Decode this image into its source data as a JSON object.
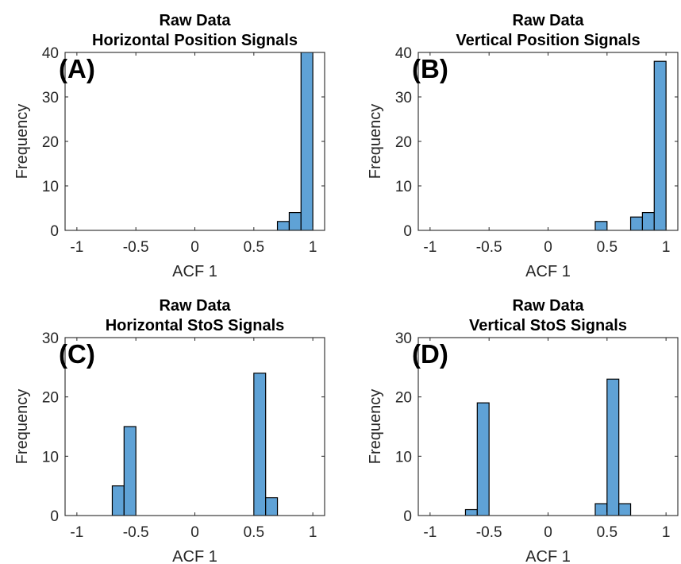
{
  "chart_data": [
    {
      "type": "bar",
      "panel_label": "(A)",
      "title": [
        "Raw Data",
        "Horizontal Position Signals"
      ],
      "xlabel": "ACF 1",
      "ylabel": "Frequency",
      "xlim": [
        -1.1,
        1.1
      ],
      "ylim": [
        0,
        40
      ],
      "xticks": [
        -1,
        -0.5,
        0,
        0.5,
        1
      ],
      "xtick_labels": [
        "-1",
        "-0.5",
        "0",
        "0.5",
        "1"
      ],
      "yticks": [
        0,
        10,
        20,
        30,
        40
      ],
      "ytick_labels": [
        "0",
        "10",
        "20",
        "30",
        "40"
      ],
      "bar_color": "#5fa2d6",
      "bins": [
        {
          "x0": 0.7,
          "x1": 0.8,
          "value": 2
        },
        {
          "x0": 0.8,
          "x1": 0.9,
          "value": 4
        },
        {
          "x0": 0.9,
          "x1": 1.0,
          "value": 41
        }
      ]
    },
    {
      "type": "bar",
      "panel_label": "(B)",
      "title": [
        "Raw Data",
        "Vertical Position Signals"
      ],
      "xlabel": "ACF 1",
      "ylabel": "Frequency",
      "xlim": [
        -1.1,
        1.1
      ],
      "ylim": [
        0,
        40
      ],
      "xticks": [
        -1,
        -0.5,
        0,
        0.5,
        1
      ],
      "xtick_labels": [
        "-1",
        "-0.5",
        "0",
        "0.5",
        "1"
      ],
      "yticks": [
        0,
        10,
        20,
        30,
        40
      ],
      "ytick_labels": [
        "0",
        "10",
        "20",
        "30",
        "40"
      ],
      "bar_color": "#5fa2d6",
      "bins": [
        {
          "x0": 0.4,
          "x1": 0.5,
          "value": 2
        },
        {
          "x0": 0.7,
          "x1": 0.8,
          "value": 3
        },
        {
          "x0": 0.8,
          "x1": 0.9,
          "value": 4
        },
        {
          "x0": 0.9,
          "x1": 1.0,
          "value": 38
        }
      ]
    },
    {
      "type": "bar",
      "panel_label": "(C)",
      "title": [
        "Raw Data",
        "Horizontal StoS Signals"
      ],
      "xlabel": "ACF 1",
      "ylabel": "Frequency",
      "xlim": [
        -1.1,
        1.1
      ],
      "ylim": [
        0,
        30
      ],
      "xticks": [
        -1,
        -0.5,
        0,
        0.5,
        1
      ],
      "xtick_labels": [
        "-1",
        "-0.5",
        "0",
        "0.5",
        "1"
      ],
      "yticks": [
        0,
        10,
        20,
        30
      ],
      "ytick_labels": [
        "0",
        "10",
        "20",
        "30"
      ],
      "bar_color": "#5fa2d6",
      "bins": [
        {
          "x0": -0.7,
          "x1": -0.6,
          "value": 5
        },
        {
          "x0": -0.6,
          "x1": -0.5,
          "value": 15
        },
        {
          "x0": 0.5,
          "x1": 0.6,
          "value": 24
        },
        {
          "x0": 0.6,
          "x1": 0.7,
          "value": 3
        }
      ]
    },
    {
      "type": "bar",
      "panel_label": "(D)",
      "title": [
        "Raw Data",
        "Vertical StoS Signals"
      ],
      "xlabel": "ACF 1",
      "ylabel": "Frequency",
      "xlim": [
        -1.1,
        1.1
      ],
      "ylim": [
        0,
        30
      ],
      "xticks": [
        -1,
        -0.5,
        0,
        0.5,
        1
      ],
      "xtick_labels": [
        "-1",
        "-0.5",
        "0",
        "0.5",
        "1"
      ],
      "yticks": [
        0,
        10,
        20,
        30
      ],
      "ytick_labels": [
        "0",
        "10",
        "20",
        "30"
      ],
      "bar_color": "#5fa2d6",
      "bins": [
        {
          "x0": -0.7,
          "x1": -0.6,
          "value": 1
        },
        {
          "x0": -0.6,
          "x1": -0.5,
          "value": 19
        },
        {
          "x0": 0.4,
          "x1": 0.5,
          "value": 2
        },
        {
          "x0": 0.5,
          "x1": 0.6,
          "value": 23
        },
        {
          "x0": 0.6,
          "x1": 0.7,
          "value": 2
        }
      ]
    }
  ]
}
